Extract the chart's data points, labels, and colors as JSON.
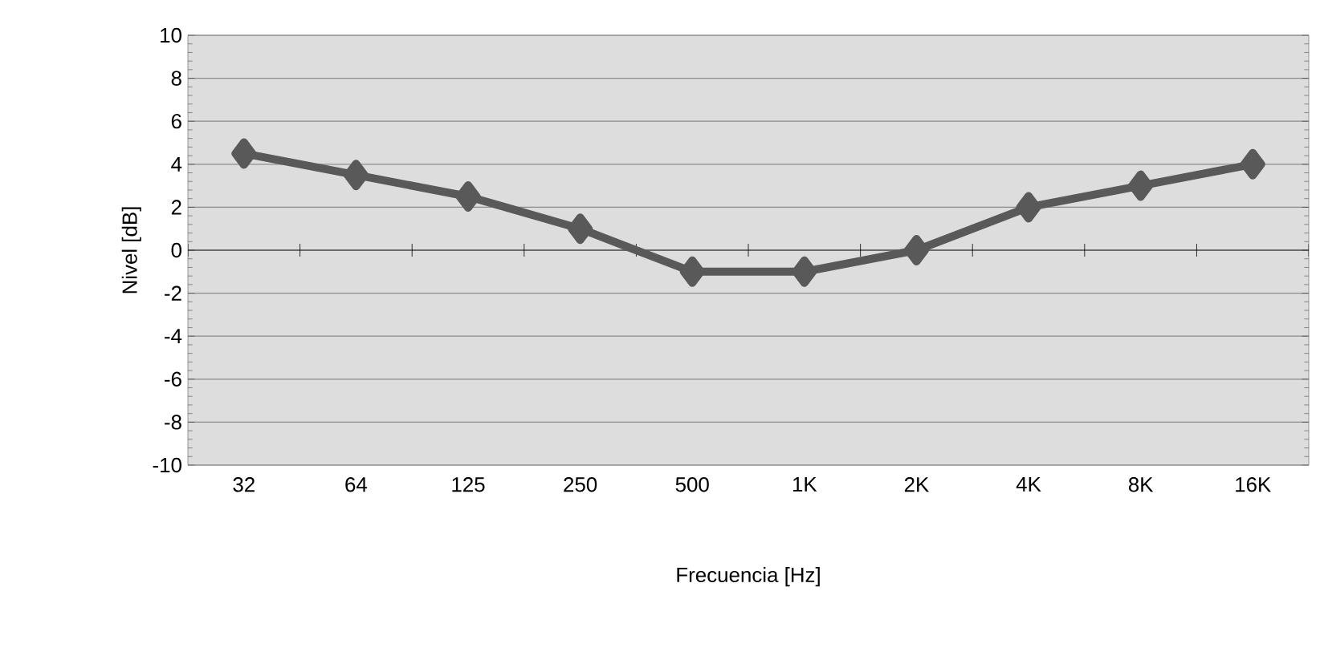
{
  "chart_data": {
    "type": "line",
    "xlabel": "Frecuencia [Hz]",
    "ylabel": "Nivel [dB]",
    "categories": [
      "32",
      "64",
      "125",
      "250",
      "500",
      "1K",
      "2K",
      "4K",
      "8K",
      "16K"
    ],
    "series": [
      {
        "color": "#595959",
        "values": [
          4.5,
          3.5,
          2.5,
          1,
          -1,
          -1,
          0,
          2,
          3,
          4
        ]
      }
    ],
    "ylim": [
      -10,
      10
    ],
    "yticks": [
      -10,
      -8,
      -6,
      -4,
      -2,
      0,
      2,
      4,
      6,
      8,
      10
    ],
    "grid": "y",
    "marker": "diamond",
    "line_style": "solid"
  }
}
